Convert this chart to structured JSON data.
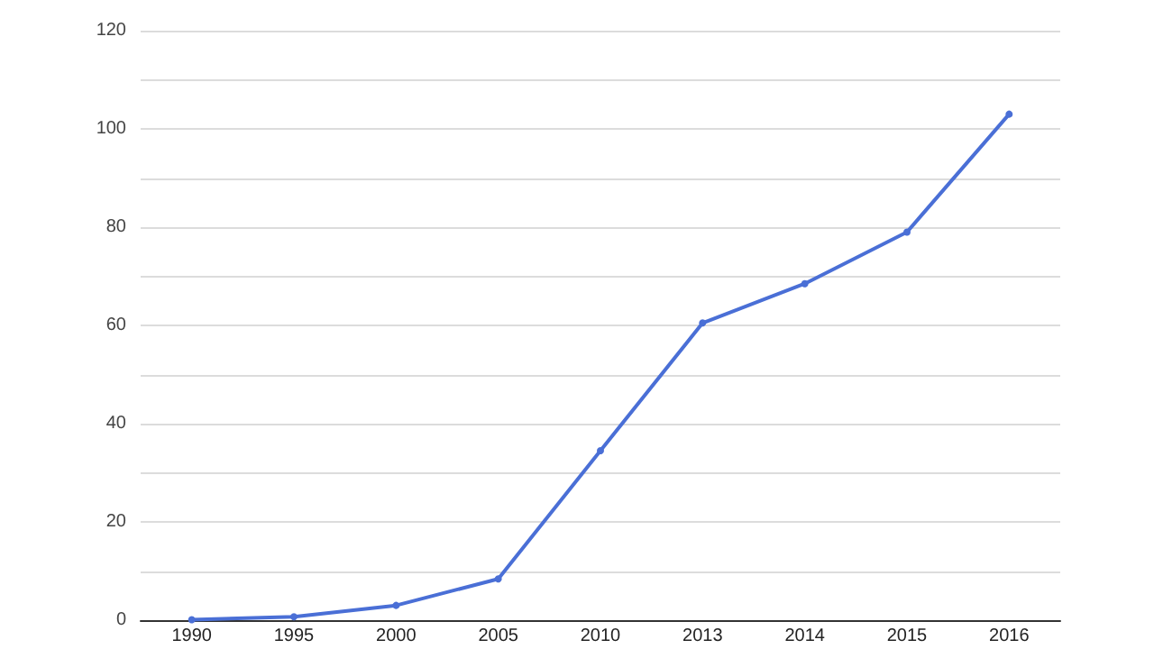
{
  "chart_data": {
    "type": "line",
    "categories": [
      "1990",
      "1995",
      "2000",
      "2005",
      "2010",
      "2013",
      "2014",
      "2015",
      "2016"
    ],
    "series": [
      {
        "color": "#4a6fd6",
        "values": [
          0.1,
          0.7,
          3,
          8.4,
          34.5,
          60.5,
          68.5,
          79,
          103
        ]
      }
    ],
    "ylim": [
      0,
      120
    ],
    "yticks": [
      0,
      {
        "value": 10,
        "label": null
      },
      20,
      {
        "value": 30,
        "label": null
      },
      40,
      {
        "value": 50,
        "label": null
      },
      60,
      {
        "value": 70,
        "label": null
      },
      80,
      {
        "value": 90,
        "label": null
      },
      100,
      {
        "value": 110,
        "label": null
      },
      120
    ],
    "grid": true,
    "marker": "circle",
    "line_style": "solid"
  }
}
